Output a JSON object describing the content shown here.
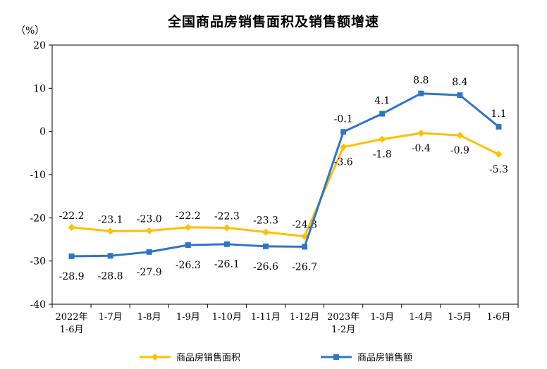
{
  "chart_data": {
    "type": "line",
    "title": "全国商品房销售面积及销售额增速",
    "ylabel": "（%）",
    "ylim": [
      -40,
      20
    ],
    "yticks": [
      20,
      10,
      0,
      -10,
      -20,
      -30,
      -40
    ],
    "categories": [
      [
        "2022年",
        "1-6月"
      ],
      [
        "1-7月"
      ],
      [
        "1-8月"
      ],
      [
        "1-9月"
      ],
      [
        "1-10月"
      ],
      [
        "1-11月"
      ],
      [
        "1-12月"
      ],
      [
        "2023年",
        "1-2月"
      ],
      [
        "1-3月"
      ],
      [
        "1-4月"
      ],
      [
        "1-5月"
      ],
      [
        "1-6月"
      ]
    ],
    "series": [
      {
        "name": "商品房销售面积",
        "color": "#FFC000",
        "marker": "diamond",
        "values": [
          -22.2,
          -23.1,
          -23.0,
          -22.2,
          -22.3,
          -23.3,
          -24.3,
          -3.6,
          -1.8,
          -0.4,
          -0.9,
          -5.3
        ],
        "labels": [
          "-22.2",
          "-23.1",
          "-23.0",
          "-22.2",
          "-22.3",
          "-23.3",
          "-24.3",
          "-3.6",
          "-1.8",
          "-0.4",
          "-0.9",
          "-5.3"
        ]
      },
      {
        "name": "商品房销售额",
        "color": "#2E75C8",
        "marker": "square",
        "values": [
          -28.9,
          -28.8,
          -27.9,
          -26.3,
          -26.1,
          -26.6,
          -26.7,
          -0.1,
          4.1,
          8.8,
          8.4,
          1.1
        ],
        "labels": [
          "-28.9",
          "-28.8",
          "-27.9",
          "-26.3",
          "-26.1",
          "-26.6",
          "-26.7",
          "-0.1",
          "4.1",
          "8.8",
          "8.4",
          "1.1"
        ]
      }
    ],
    "grid": false,
    "legend_position": "bottom"
  }
}
